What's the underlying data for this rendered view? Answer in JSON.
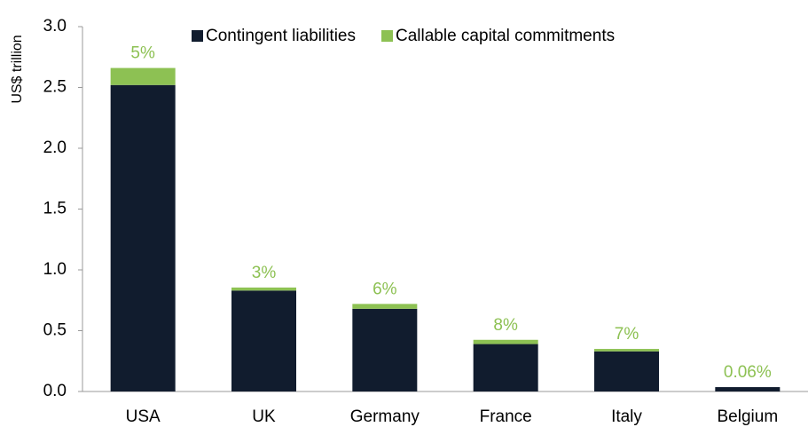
{
  "chart_data": {
    "type": "stacked_bar",
    "y_label": "US$ trillion",
    "categories": [
      "USA",
      "UK",
      "Germany",
      "France",
      "Italy",
      "Belgium"
    ],
    "series": [
      {
        "name": "Contingent liabilities",
        "color": "#111c2e",
        "values": [
          2.52,
          0.83,
          0.68,
          0.39,
          0.33,
          0.036
        ]
      },
      {
        "name": "Callable capital commitments",
        "color": "#8dc153",
        "values": [
          0.14,
          0.025,
          0.04,
          0.035,
          0.02,
          0
        ]
      }
    ],
    "annotations": [
      "5%",
      "3%",
      "6%",
      "8%",
      "7%",
      "0.06%"
    ],
    "ylim": [
      0,
      3
    ],
    "yticks": [
      {
        "value": 0,
        "label": "0.0"
      },
      0.5,
      {
        "value": 1,
        "label": "1.0"
      },
      1.5,
      {
        "value": 2,
        "label": "2.0"
      },
      2.5,
      {
        "value": 3,
        "label": "3.0"
      }
    ],
    "grid": false,
    "legend": "top"
  }
}
